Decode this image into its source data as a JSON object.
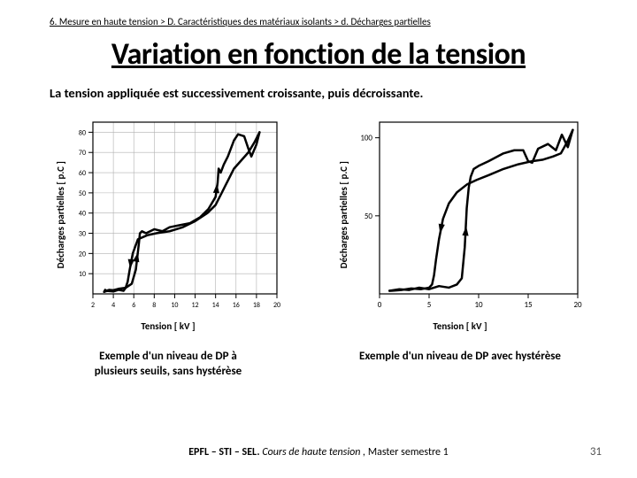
{
  "breadcrumb": "6. Mesure en haute tension  >  D. Caractéristiques des matériaux isolants  >  d. Décharges partielles",
  "title": "Variation en fonction de la tension",
  "subtitle": "La tension appliquée est successivement croissante, puis décroissante.",
  "footer_bold": "EPFL – STI – SEL.",
  "footer_italic": "  Cours de haute tension ,",
  "footer_rest": " Master semestre 1",
  "page_num": "31",
  "chart1": {
    "ylabel": "Décharges partielles  [ p.C ]",
    "xlabel": "Tension  [ kV ]",
    "caption_l1": "Exemple d'un niveau de DP à",
    "caption_l2": "plusieurs seuils, sans hystérèse",
    "xlim": [
      2,
      20
    ],
    "ylim": [
      0,
      85
    ],
    "xticks": [
      2,
      4,
      6,
      8,
      10,
      12,
      14,
      16,
      18,
      20
    ],
    "yticks": [
      10,
      20,
      30,
      40,
      50,
      60,
      70,
      80
    ],
    "grid_color": "#b0b0b0",
    "axis_color": "#000000",
    "line_color": "#000000",
    "line_width": 2.5,
    "background": "#ffffff",
    "label_fontsize": 11,
    "tick_fontsize": 8,
    "up_curve": [
      [
        3.1,
        1
      ],
      [
        3.2,
        2
      ],
      [
        3.3,
        1.5
      ],
      [
        3.6,
        2
      ],
      [
        4.0,
        1.8
      ],
      [
        4.5,
        2.5
      ],
      [
        5.2,
        3
      ],
      [
        5.8,
        5
      ],
      [
        6.2,
        12
      ],
      [
        6.5,
        25
      ],
      [
        6.6,
        30
      ],
      [
        6.8,
        31
      ],
      [
        7.2,
        30
      ],
      [
        8.0,
        32
      ],
      [
        8.8,
        31
      ],
      [
        9.5,
        33
      ],
      [
        10.5,
        34
      ],
      [
        11.5,
        35
      ],
      [
        12.5,
        38
      ],
      [
        13.3,
        42
      ],
      [
        14,
        48
      ],
      [
        14.2,
        55
      ],
      [
        14.3,
        62
      ],
      [
        14.5,
        60
      ],
      [
        14.8,
        64
      ],
      [
        15.2,
        68
      ],
      [
        15.5,
        72
      ],
      [
        15.8,
        76
      ],
      [
        16.2,
        79
      ],
      [
        16.8,
        78
      ],
      [
        17.2,
        72
      ],
      [
        17.5,
        68
      ],
      [
        18,
        74
      ],
      [
        18.3,
        80
      ]
    ],
    "down_curve": [
      [
        18.3,
        80
      ],
      [
        17.8,
        75
      ],
      [
        17.2,
        70
      ],
      [
        16.5,
        66
      ],
      [
        15.8,
        62
      ],
      [
        15.2,
        56
      ],
      [
        14.6,
        50
      ],
      [
        14.0,
        44
      ],
      [
        13.2,
        40
      ],
      [
        12.0,
        36
      ],
      [
        10.8,
        33
      ],
      [
        9.5,
        31
      ],
      [
        8.2,
        30
      ],
      [
        7.3,
        29
      ],
      [
        6.4,
        27
      ],
      [
        5.9,
        20
      ],
      [
        5.6,
        12
      ],
      [
        5.4,
        6
      ],
      [
        5.2,
        3
      ],
      [
        5.0,
        1.5
      ],
      [
        4.5,
        2
      ],
      [
        4.0,
        1.2
      ],
      [
        3.4,
        1.5
      ],
      [
        3.1,
        1
      ]
    ]
  },
  "chart2": {
    "ylabel": "Décharges partielles  [ p.C ]",
    "xlabel": "Tension  [ kV ]",
    "caption": "Exemple d'un niveau de DP avec hystérèse",
    "xlim": [
      0,
      20
    ],
    "ylim": [
      0,
      110
    ],
    "xticks": [
      0,
      5,
      10,
      15,
      20
    ],
    "yticks": [
      50,
      100
    ],
    "grid_color": "#b0b0b0",
    "axis_color": "#000000",
    "line_color": "#000000",
    "line_width": 2.5,
    "background": "#ffffff",
    "label_fontsize": 11,
    "tick_fontsize": 9,
    "up_curve": [
      [
        1,
        2
      ],
      [
        2,
        3
      ],
      [
        3,
        2.5
      ],
      [
        4,
        4
      ],
      [
        5,
        3
      ],
      [
        6,
        5
      ],
      [
        7,
        4
      ],
      [
        7.8,
        6
      ],
      [
        8.3,
        10
      ],
      [
        8.6,
        30
      ],
      [
        8.8,
        55
      ],
      [
        9.0,
        68
      ],
      [
        9.2,
        75
      ],
      [
        9.5,
        80
      ],
      [
        10,
        82
      ],
      [
        11,
        85
      ],
      [
        12.5,
        90
      ],
      [
        13.6,
        92
      ],
      [
        14.5,
        92
      ],
      [
        15,
        85
      ],
      [
        15.4,
        84
      ],
      [
        16,
        93
      ],
      [
        17,
        96
      ],
      [
        17.8,
        92
      ],
      [
        18.4,
        102
      ],
      [
        19,
        94
      ],
      [
        19.5,
        105
      ]
    ],
    "down_curve": [
      [
        19.5,
        105
      ],
      [
        19,
        98
      ],
      [
        18.3,
        90
      ],
      [
        17.5,
        88
      ],
      [
        16.5,
        86
      ],
      [
        15.4,
        85
      ],
      [
        14.0,
        83
      ],
      [
        12.5,
        80
      ],
      [
        11.0,
        76
      ],
      [
        9.8,
        73
      ],
      [
        8.8,
        70
      ],
      [
        7.8,
        65
      ],
      [
        7.0,
        58
      ],
      [
        6.4,
        48
      ],
      [
        6.0,
        35
      ],
      [
        5.7,
        22
      ],
      [
        5.5,
        12
      ],
      [
        5.3,
        6
      ],
      [
        5.0,
        4
      ],
      [
        4.2,
        3
      ],
      [
        3.2,
        3.5
      ],
      [
        2.2,
        2.5
      ],
      [
        1.2,
        2
      ],
      [
        1,
        2
      ]
    ]
  }
}
